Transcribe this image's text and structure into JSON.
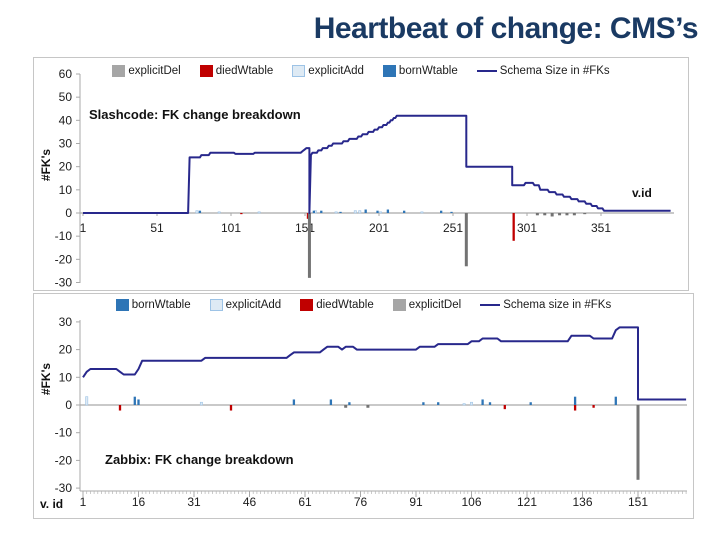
{
  "page": {
    "title": "Heartbeat of change: CMS’s"
  },
  "colors": {
    "title_navy": "#1a3a63",
    "schema_line": "#28288C",
    "bornWtable": "#2E75B6",
    "explicitAdd": "#DEEAF4",
    "explicitAdd_border": "#9DC3E6",
    "diedWtable": "#C00000",
    "explicitDel_swatch": "#A6A6A6",
    "explicitDel_bar": "#737373",
    "axis_gray": "#A9A9A9",
    "tick_text": "#1c1c1c"
  },
  "chart_data": [
    {
      "id": "slashcode",
      "type": "line",
      "title": "Slashcode: FK change breakdown",
      "xlabel": "v.id",
      "ylabel": "#FK's",
      "ylim": [
        -30,
        60
      ],
      "yticks": [
        60,
        50,
        40,
        30,
        20,
        10,
        0,
        -10,
        -20,
        -30
      ],
      "xticks": [
        1,
        51,
        101,
        151,
        201,
        251,
        301,
        351
      ],
      "xlim": [
        1,
        400
      ],
      "legend": [
        {
          "label": "explicitDel",
          "marker": "box",
          "series": "explicitDel"
        },
        {
          "label": "diedWtable",
          "marker": "box",
          "series": "diedWtable"
        },
        {
          "label": "explicitAdd",
          "marker": "box",
          "series": "explicitAdd"
        },
        {
          "label": "bornWtable",
          "marker": "box",
          "series": "bornWtable"
        },
        {
          "label": "Schema Size in #FKs",
          "marker": "line",
          "series": "schema_line"
        }
      ],
      "line": {
        "name": "Schema Size in #FKs",
        "points": [
          [
            1,
            0
          ],
          [
            72,
            0
          ],
          [
            73,
            24
          ],
          [
            80,
            24
          ],
          [
            81,
            25
          ],
          [
            86,
            25
          ],
          [
            87,
            26
          ],
          [
            103,
            26
          ],
          [
            104,
            25.5
          ],
          [
            116,
            25.5
          ],
          [
            117,
            26
          ],
          [
            148,
            26
          ],
          [
            150,
            27
          ],
          [
            152,
            28
          ],
          [
            154,
            28
          ],
          [
            154,
            0
          ],
          [
            155,
            25
          ],
          [
            156,
            26
          ],
          [
            159,
            26
          ],
          [
            160,
            27
          ],
          [
            162,
            27
          ],
          [
            163,
            28
          ],
          [
            166,
            28
          ],
          [
            167,
            29
          ],
          [
            169,
            29
          ],
          [
            170,
            30
          ],
          [
            176,
            30
          ],
          [
            177,
            31
          ],
          [
            180,
            31
          ],
          [
            181,
            32
          ],
          [
            186,
            32
          ],
          [
            187,
            33
          ],
          [
            189,
            33
          ],
          [
            190,
            34
          ],
          [
            193,
            34
          ],
          [
            194,
            35
          ],
          [
            197,
            35
          ],
          [
            198,
            36
          ],
          [
            200,
            36
          ],
          [
            201,
            37
          ],
          [
            203,
            37
          ],
          [
            204,
            38
          ],
          [
            206,
            38
          ],
          [
            207,
            39
          ],
          [
            208,
            39
          ],
          [
            209,
            40
          ],
          [
            210,
            40
          ],
          [
            211,
            41
          ],
          [
            212,
            41
          ],
          [
            213,
            42
          ],
          [
            260,
            42
          ],
          [
            260,
            20
          ],
          [
            291,
            20
          ],
          [
            291,
            12
          ],
          [
            299,
            12
          ],
          [
            300,
            13
          ],
          [
            305,
            13
          ],
          [
            306,
            12
          ],
          [
            309,
            12
          ],
          [
            310,
            10
          ],
          [
            315,
            10
          ],
          [
            316,
            9
          ],
          [
            320,
            9
          ],
          [
            321,
            8
          ],
          [
            325,
            8
          ],
          [
            326,
            7
          ],
          [
            330,
            7
          ],
          [
            331,
            6
          ],
          [
            335,
            6
          ],
          [
            336,
            5
          ],
          [
            340,
            5
          ],
          [
            341,
            4
          ],
          [
            344,
            4
          ],
          [
            345,
            3
          ],
          [
            348,
            3
          ],
          [
            349,
            2
          ],
          [
            352,
            2
          ],
          [
            353,
            1
          ],
          [
            398,
            1
          ]
        ]
      },
      "bars": {
        "explicitAdd": [
          [
            78,
            1
          ],
          [
            93,
            0.5
          ],
          [
            120,
            0.5
          ],
          [
            158,
            1
          ],
          [
            172,
            0.5
          ],
          [
            185,
            1
          ],
          [
            188,
            1
          ],
          [
            202,
            0.5
          ],
          [
            230,
            0.5
          ]
        ],
        "bornWtable": [
          [
            80,
            1
          ],
          [
            157,
            1
          ],
          [
            162,
            1
          ],
          [
            175,
            0.5
          ],
          [
            192,
            1.5
          ],
          [
            200,
            1
          ],
          [
            207,
            1.5
          ],
          [
            218,
            1
          ],
          [
            243,
            1
          ],
          [
            250,
            0.5
          ]
        ],
        "diedWtable": [
          [
            108,
            -0.5
          ],
          [
            153,
            -2.5
          ],
          [
            292,
            -12
          ]
        ],
        "explicitDel": [
          [
            154,
            -28
          ],
          [
            260,
            -23
          ],
          [
            308,
            -1
          ],
          [
            313,
            -1
          ],
          [
            318,
            -1.5
          ],
          [
            323,
            -1
          ],
          [
            328,
            -1
          ],
          [
            333,
            -1
          ],
          [
            340,
            -0.5
          ]
        ]
      }
    },
    {
      "id": "zabbix",
      "type": "line",
      "title": "Zabbix: FK change breakdown",
      "xlabel": "v. id",
      "ylabel": "#FK's",
      "ylim": [
        -30,
        30
      ],
      "yticks": [
        30,
        20,
        10,
        0,
        -10,
        -20,
        -30
      ],
      "xticks": [
        1,
        16,
        31,
        46,
        61,
        76,
        91,
        106,
        121,
        136,
        151
      ],
      "xlim": [
        1,
        164
      ],
      "legend": [
        {
          "label": "bornWtable",
          "marker": "box",
          "series": "bornWtable"
        },
        {
          "label": "explicitAdd",
          "marker": "box",
          "series": "explicitAdd"
        },
        {
          "label": "diedWtable",
          "marker": "box",
          "series": "diedWtable"
        },
        {
          "label": "explicitDel",
          "marker": "box",
          "series": "explicitDel"
        },
        {
          "label": "Schema size in #FKs",
          "marker": "line",
          "series": "schema_line"
        }
      ],
      "line": {
        "name": "Schema size in #FKs",
        "points": [
          [
            1,
            10
          ],
          [
            2,
            12
          ],
          [
            3,
            13
          ],
          [
            10,
            13
          ],
          [
            11,
            12
          ],
          [
            12,
            11
          ],
          [
            15,
            11
          ],
          [
            16,
            13
          ],
          [
            17,
            16
          ],
          [
            32,
            16
          ],
          [
            33,
            16
          ],
          [
            34,
            17
          ],
          [
            56,
            17
          ],
          [
            57,
            18
          ],
          [
            58,
            19
          ],
          [
            65,
            19
          ],
          [
            66,
            20
          ],
          [
            67,
            21
          ],
          [
            70,
            21
          ],
          [
            71,
            20
          ],
          [
            72,
            21
          ],
          [
            74,
            21
          ],
          [
            75,
            20
          ],
          [
            91,
            20
          ],
          [
            92,
            21
          ],
          [
            96,
            21
          ],
          [
            97,
            22
          ],
          [
            105,
            22
          ],
          [
            106,
            23
          ],
          [
            108,
            23
          ],
          [
            109,
            24
          ],
          [
            113,
            24
          ],
          [
            114,
            23
          ],
          [
            132,
            23
          ],
          [
            133,
            25
          ],
          [
            138,
            25
          ],
          [
            139,
            24
          ],
          [
            144,
            24
          ],
          [
            145,
            27
          ],
          [
            146,
            28
          ],
          [
            151,
            28
          ],
          [
            151,
            2
          ],
          [
            164,
            2
          ]
        ]
      },
      "bars": {
        "explicitAdd": [
          [
            2,
            3
          ],
          [
            33,
            1
          ],
          [
            104,
            0.5
          ],
          [
            106,
            1
          ]
        ],
        "bornWtable": [
          [
            15,
            3
          ],
          [
            16,
            2
          ],
          [
            58,
            2
          ],
          [
            68,
            2
          ],
          [
            73,
            1
          ],
          [
            93,
            1
          ],
          [
            97,
            1
          ],
          [
            109,
            2
          ],
          [
            111,
            1
          ],
          [
            122,
            1
          ],
          [
            134,
            3
          ],
          [
            145,
            3
          ]
        ],
        "diedWtable": [
          [
            11,
            -2
          ],
          [
            41,
            -2
          ],
          [
            115,
            -1.5
          ],
          [
            134,
            -2
          ],
          [
            139,
            -1
          ]
        ],
        "explicitDel": [
          [
            72,
            -1
          ],
          [
            78,
            -1
          ],
          [
            151,
            -27
          ]
        ]
      }
    }
  ]
}
